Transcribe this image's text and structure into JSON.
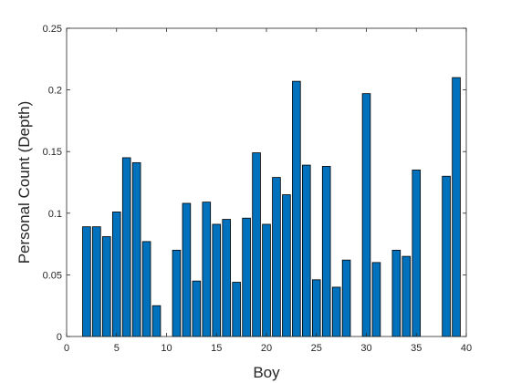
{
  "chart_data": {
    "type": "bar",
    "xlabel": "Boy",
    "ylabel": "Personal Count (Depth)",
    "xlim": [
      0,
      40
    ],
    "ylim": [
      0,
      0.25
    ],
    "xticks": [
      0,
      5,
      10,
      15,
      20,
      25,
      30,
      35,
      40
    ],
    "yticks": [
      0,
      0.05,
      0.1,
      0.15,
      0.2,
      0.25
    ],
    "xtick_labels": [
      "0",
      "5",
      "10",
      "15",
      "20",
      "25",
      "30",
      "35",
      "40"
    ],
    "ytick_labels": [
      "0",
      "0.05",
      "0.1",
      "0.15",
      "0.2",
      "0.25"
    ],
    "grid": false,
    "bar_color": "#0072BD",
    "bar_edge_color": "#000000",
    "x": [
      2,
      3,
      4,
      5,
      6,
      7,
      8,
      9,
      11,
      12,
      13,
      14,
      15,
      16,
      17,
      18,
      19,
      20,
      21,
      22,
      23,
      24,
      25,
      26,
      27,
      28,
      30,
      31,
      33,
      34,
      35,
      38,
      39
    ],
    "values": [
      0.089,
      0.089,
      0.081,
      0.101,
      0.145,
      0.141,
      0.077,
      0.025,
      0.07,
      0.108,
      0.045,
      0.109,
      0.091,
      0.095,
      0.044,
      0.096,
      0.149,
      0.091,
      0.129,
      0.115,
      0.207,
      0.139,
      0.046,
      0.138,
      0.04,
      0.062,
      0.197,
      0.06,
      0.07,
      0.065,
      0.135,
      0.13,
      0.21
    ]
  }
}
